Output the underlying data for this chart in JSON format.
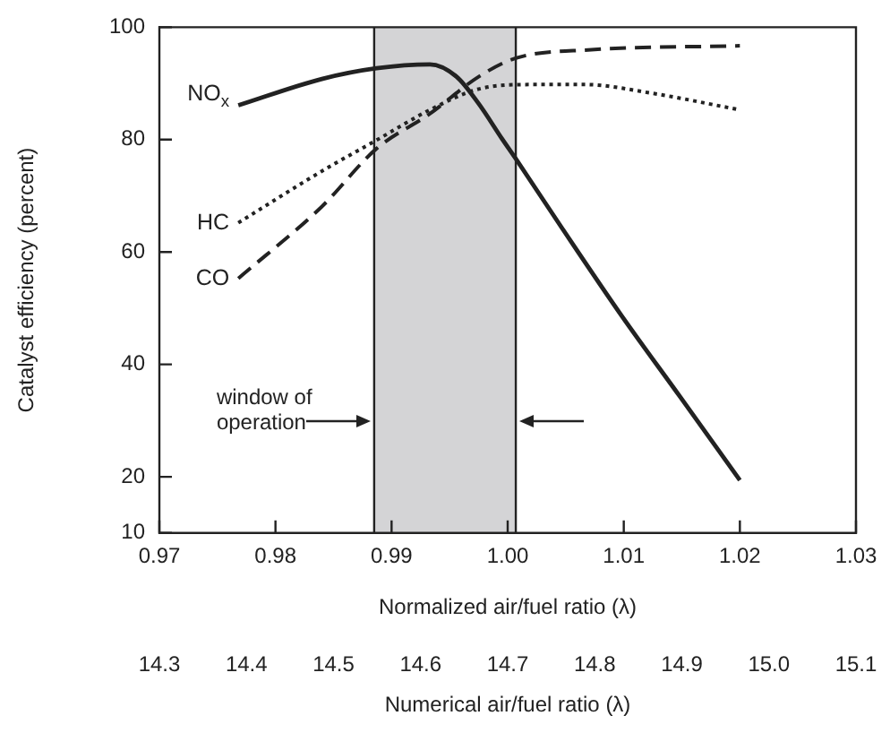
{
  "chart_data": {
    "type": "line",
    "xlabel": "Normalized air/fuel ratio (λ)",
    "ylabel": "Catalyst efficiency (percent)",
    "x2label": "Numerical air/fuel ratio (λ)",
    "xlim": [
      0.97,
      1.03
    ],
    "xticks": [
      0.97,
      0.98,
      0.99,
      {
        "value": 1,
        "label": "1.00"
      },
      1.01,
      1.02,
      1.03
    ],
    "x2lim": [
      14.3,
      15.1
    ],
    "x2ticks": [
      14.3,
      14.4,
      14.5,
      14.6,
      14.7,
      14.8,
      14.9,
      {
        "value": 15,
        "label": "15.0"
      },
      15.1
    ],
    "ylim": [
      10,
      100
    ],
    "yticks": [
      10,
      20,
      40,
      60,
      80,
      100
    ],
    "grid": false,
    "legend": false,
    "bands": [
      {
        "axis": "x",
        "from": 0.9885,
        "to": 1.0007,
        "color": "#d4d4d6"
      }
    ],
    "ref_lines": [
      {
        "axis": "x",
        "value": 0.9885,
        "color": "#222222"
      },
      {
        "axis": "x",
        "value": 1.0007,
        "color": "#222222"
      }
    ],
    "annotations": [
      {
        "text": "window of operation",
        "x": 0.9885,
        "y": 30
      }
    ],
    "series": [
      {
        "name": "NO$_{x}$",
        "color": "#222222",
        "line_style": "solid",
        "x": [
          0.9768,
          0.984,
          0.9887,
          0.9933,
          0.9956,
          0.9975,
          0.9995,
          1.0007,
          1.0046,
          1.0098,
          1.0149,
          1.02
        ],
        "values": [
          86.1,
          90.8,
          92.7,
          93.4,
          91.2,
          86.4,
          80.2,
          76.6,
          64.5,
          48.7,
          34.1,
          19.4
        ]
      },
      {
        "name": "HC",
        "color": "#222222",
        "line_style": "dotted",
        "x": [
          0.9768,
          0.984,
          0.9887,
          0.9933,
          0.9975,
          1.0021,
          1.0067,
          1.0123,
          1.02
        ],
        "values": [
          65.2,
          74.4,
          79.9,
          85.3,
          89,
          89.8,
          89.8,
          88.3,
          85.3
        ]
      },
      {
        "name": "CO",
        "color": "#222222",
        "line_style": "dashed",
        "x": [
          0.9768,
          0.984,
          0.9887,
          0.9933,
          0.9975,
          1.0007,
          1.0072,
          1.02
        ],
        "values": [
          55.3,
          68.1,
          78.4,
          84.6,
          91.2,
          94.5,
          96,
          96.7
        ]
      }
    ]
  }
}
